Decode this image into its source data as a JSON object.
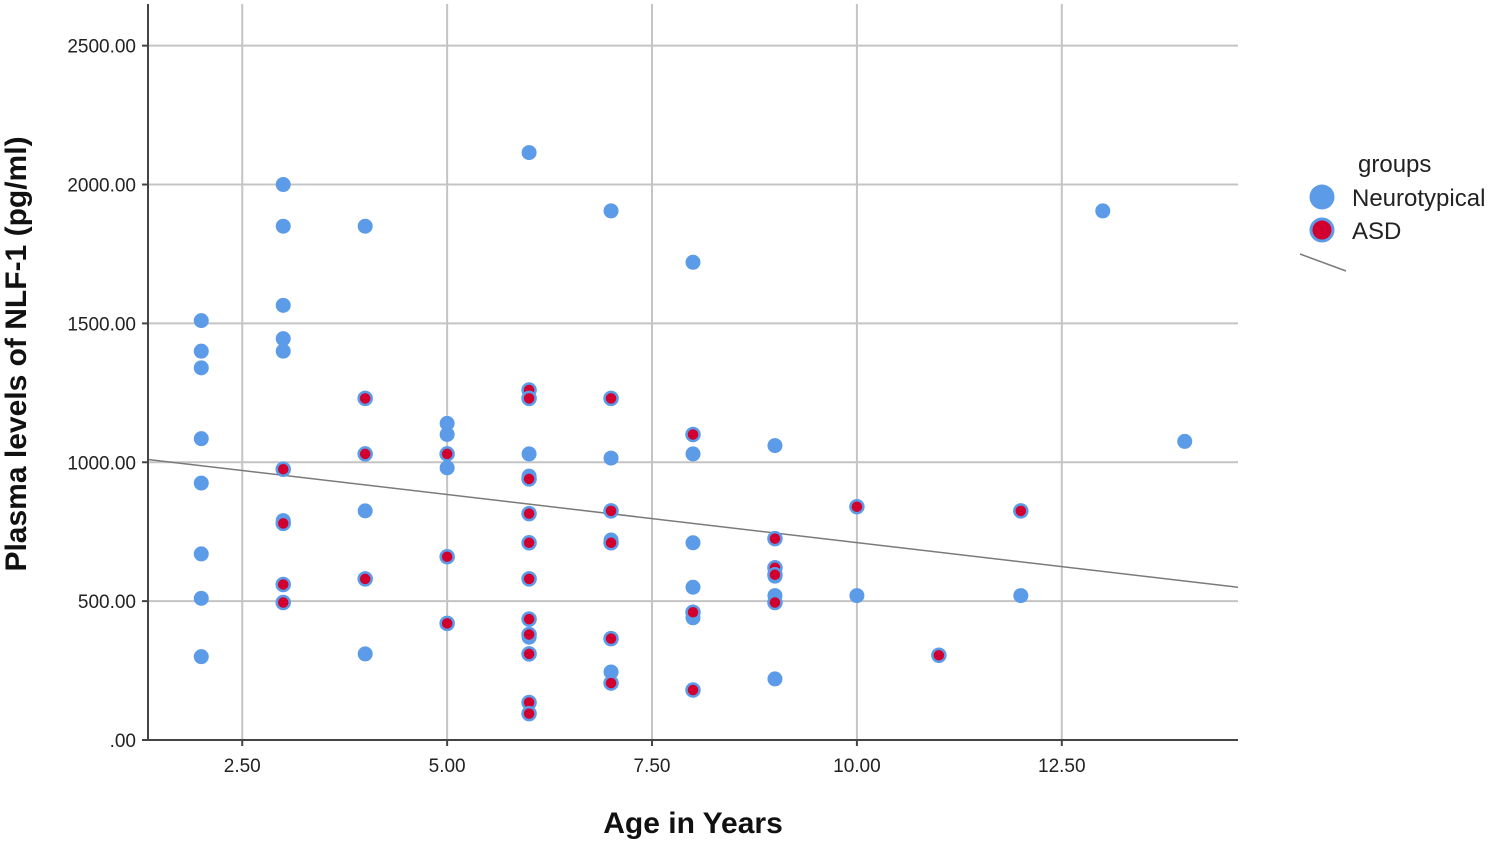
{
  "chart_data": {
    "type": "scatter",
    "xlabel": "Age in Years",
    "ylabel": "Plasma levels of NLF-1 (pg/ml)",
    "xlim": [
      1.35,
      14.65
    ],
    "ylim": [
      0,
      2650
    ],
    "x_ticks": [
      {
        "value": 2.5,
        "label": "2.50"
      },
      {
        "value": 5.0,
        "label": "5.00"
      },
      {
        "value": 7.5,
        "label": "7.50"
      },
      {
        "value": 10.0,
        "label": "10.00"
      },
      {
        "value": 12.5,
        "label": "12.50"
      }
    ],
    "y_ticks": [
      {
        "value": 0,
        "label": ".00"
      },
      {
        "value": 500,
        "label": "500.00"
      },
      {
        "value": 1000,
        "label": "1000.00"
      },
      {
        "value": 1500,
        "label": "1500.00"
      },
      {
        "value": 2000,
        "label": "2000.00"
      },
      {
        "value": 2500,
        "label": "2500.00"
      }
    ],
    "grid": true,
    "legend": {
      "title": "groups",
      "placement": "right",
      "entries": [
        {
          "name": "Neurotypical",
          "color": "#5b9be8"
        },
        {
          "name": "ASD",
          "color": "#d1002f"
        }
      ]
    },
    "fit_line": {
      "x": [
        1.35,
        14.65
      ],
      "y": [
        1010,
        550
      ],
      "color": "#7a7a7a"
    },
    "series": [
      {
        "name": "Neurotypical",
        "color": "#5b9be8",
        "points": [
          [
            2,
            1510
          ],
          [
            2,
            1400
          ],
          [
            2,
            1340
          ],
          [
            2,
            1085
          ],
          [
            2,
            925
          ],
          [
            2,
            670
          ],
          [
            2,
            510
          ],
          [
            2,
            300
          ],
          [
            3,
            2000
          ],
          [
            3,
            1850
          ],
          [
            3,
            1565
          ],
          [
            3,
            1445
          ],
          [
            3,
            1400
          ],
          [
            3,
            790
          ],
          [
            4,
            1850
          ],
          [
            4,
            825
          ],
          [
            4,
            310
          ],
          [
            5,
            1140
          ],
          [
            5,
            1100
          ],
          [
            5,
            980
          ],
          [
            6,
            2115
          ],
          [
            6,
            1030
          ],
          [
            6,
            950
          ],
          [
            6,
            370
          ],
          [
            7,
            1905
          ],
          [
            7,
            1015
          ],
          [
            7,
            720
          ],
          [
            7,
            245
          ],
          [
            8,
            1720
          ],
          [
            8,
            1030
          ],
          [
            8,
            710
          ],
          [
            8,
            550
          ],
          [
            8,
            440
          ],
          [
            9,
            1060
          ],
          [
            9,
            590
          ],
          [
            9,
            520
          ],
          [
            9,
            220
          ],
          [
            10,
            520
          ],
          [
            12,
            520
          ],
          [
            13,
            1905
          ],
          [
            14,
            1075
          ]
        ]
      },
      {
        "name": "ASD",
        "color": "#d1002f",
        "points": [
          [
            3,
            975
          ],
          [
            3,
            780
          ],
          [
            3,
            560
          ],
          [
            3,
            495
          ],
          [
            4,
            1230
          ],
          [
            4,
            1030
          ],
          [
            4,
            580
          ],
          [
            5,
            1030
          ],
          [
            5,
            660
          ],
          [
            5,
            420
          ],
          [
            6,
            1260
          ],
          [
            6,
            1230
          ],
          [
            6,
            940
          ],
          [
            6,
            815
          ],
          [
            6,
            710
          ],
          [
            6,
            580
          ],
          [
            6,
            435
          ],
          [
            6,
            380
          ],
          [
            6,
            310
          ],
          [
            6,
            135
          ],
          [
            6,
            95
          ],
          [
            7,
            1230
          ],
          [
            7,
            825
          ],
          [
            7,
            710
          ],
          [
            7,
            365
          ],
          [
            7,
            205
          ],
          [
            8,
            1100
          ],
          [
            8,
            460
          ],
          [
            8,
            180
          ],
          [
            9,
            725
          ],
          [
            9,
            620
          ],
          [
            9,
            595
          ],
          [
            9,
            495
          ],
          [
            10,
            840
          ],
          [
            11,
            305
          ],
          [
            12,
            825
          ]
        ]
      }
    ]
  }
}
